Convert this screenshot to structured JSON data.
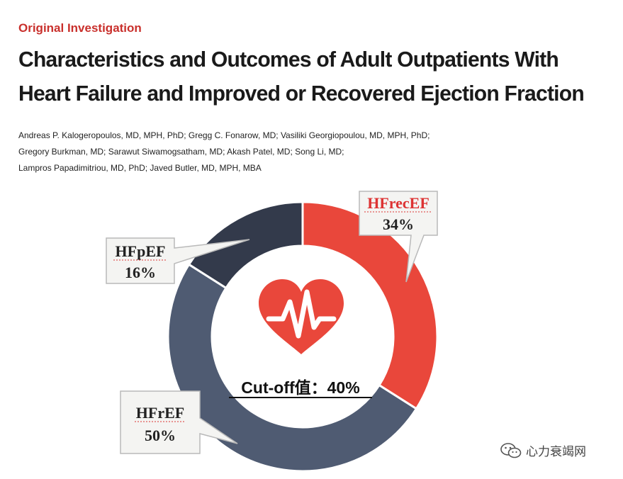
{
  "header": {
    "section_label": "Original Investigation",
    "title_line1": "Characteristics and Outcomes of Adult Outpatients With",
    "title_line2": "Heart Failure and Improved or Recovered Ejection Fraction"
  },
  "authors": [
    "Andreas P. Kalogeropoulos, MD, MPH, PhD; Gregg C. Fonarow, MD; Vasiliki Georgiopoulou, MD, MPH, PhD;",
    "Gregory Burkman, MD; Sarawut Siwamogsatham, MD; Akash Patel, MD; Song Li, MD;",
    "Lampros Papadimitriou, MD, PhD; Javed Butler, MD, MPH, MBA"
  ],
  "chart_data": {
    "type": "pie",
    "title": "",
    "center_label": "Cut-off值：40%",
    "categories": [
      "HFrecEF",
      "HFrEF",
      "HFpEF"
    ],
    "values": [
      34,
      50,
      16
    ],
    "value_labels": [
      "34%",
      "50%",
      "16%"
    ],
    "colors": [
      "#e9473b",
      "#4f5b72",
      "#333a4b"
    ],
    "center_icon": "heart-pulse-icon",
    "center_icon_color": "#e9473b"
  },
  "watermark": {
    "text": "心力衰竭网",
    "icon": "wechat-icon"
  }
}
